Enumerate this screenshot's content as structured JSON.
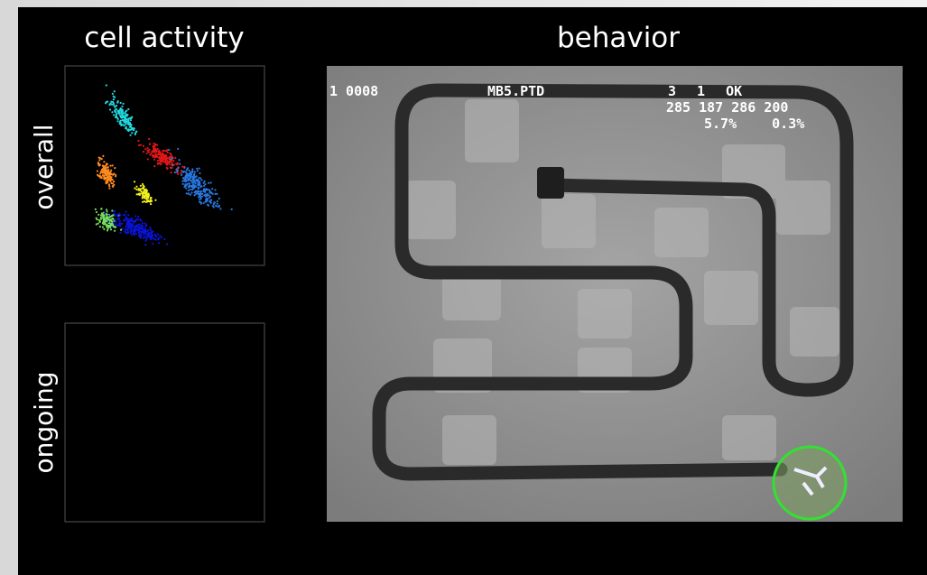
{
  "header": {
    "left_title": "cell activity",
    "right_title": "behavior"
  },
  "panels": {
    "rows": [
      {
        "label": "overall"
      },
      {
        "label": "ongoing"
      }
    ]
  },
  "video_overlay": {
    "lines": [
      "1 0008",
      "MB5.PTD",
      "3 1 OK",
      "285 187 286 200",
      "5.7% 0.3%"
    ]
  }
}
